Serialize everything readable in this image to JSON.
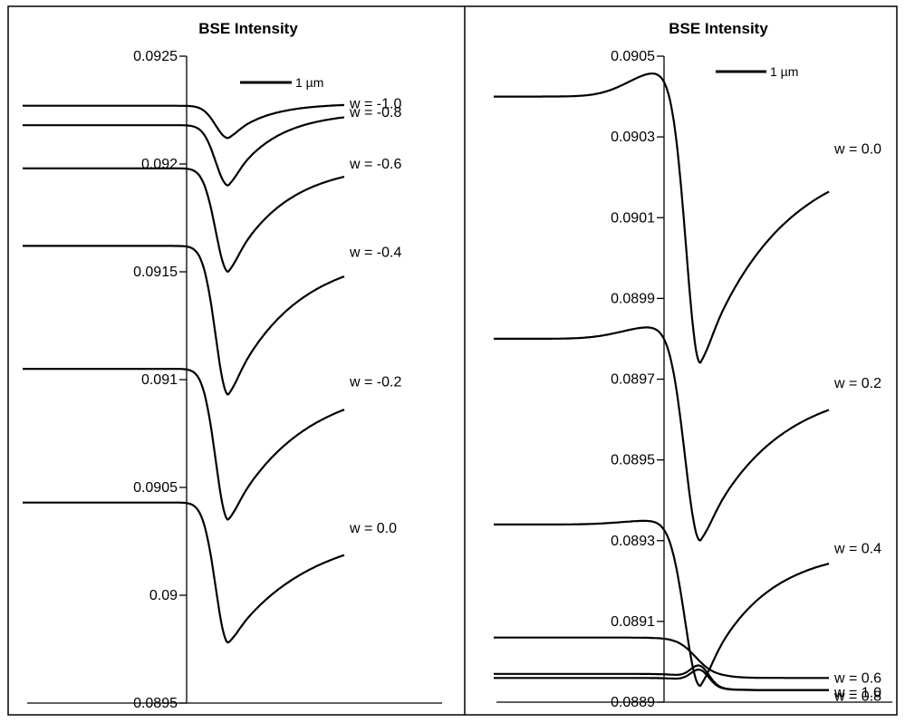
{
  "chart_data": [
    {
      "type": "line",
      "title": "BSE Intensity",
      "scale_bar": "1 µm",
      "y_tick_labels": [
        "0.0925",
        "0.092",
        "0.0915",
        "0.091",
        "0.0905",
        "0.09",
        "0.0895"
      ],
      "ylim": [
        0.0895,
        0.0925
      ],
      "series": [
        {
          "name": "w = -1.0",
          "left": 0.09227,
          "dip": 0.09212,
          "right": 0.09228,
          "dip_width": 1.0,
          "rec_scale": 1.0
        },
        {
          "name": "w = -0.8",
          "left": 0.09218,
          "dip": 0.0919,
          "right": 0.09224,
          "dip_width": 1.0,
          "rec_scale": 1.2
        },
        {
          "name": "w = -0.6",
          "left": 0.09198,
          "dip": 0.0915,
          "right": 0.092,
          "dip_width": 1.0,
          "rec_scale": 1.5
        },
        {
          "name": "w = -0.4",
          "left": 0.09162,
          "dip": 0.09093,
          "right": 0.09159,
          "dip_width": 1.0,
          "rec_scale": 1.8
        },
        {
          "name": "w = -0.2",
          "left": 0.09105,
          "dip": 0.09035,
          "right": 0.09099,
          "dip_width": 1.0,
          "rec_scale": 2.0
        },
        {
          "name": "w = 0.0",
          "left": 0.09043,
          "dip": 0.08978,
          "right": 0.09031,
          "dip_width": 1.0,
          "rec_scale": 2.2
        }
      ]
    },
    {
      "type": "line",
      "title": "BSE Intensity",
      "scale_bar": "1 µm",
      "y_tick_labels": [
        "0.0905",
        "0.0903",
        "0.0901",
        "0.0899",
        "0.0897",
        "0.0895",
        "0.0893",
        "0.0891",
        "0.0889"
      ],
      "ylim": [
        0.0889,
        0.0905
      ],
      "series": [
        {
          "name": "w = 0.0",
          "left": 0.0904,
          "peak": 0.09046,
          "dip": 0.08974,
          "right": 0.09027,
          "dip_width": 1.1,
          "rec_scale": 2.2
        },
        {
          "name": "w = 0.2",
          "left": 0.0898,
          "peak": 0.08983,
          "dip": 0.0893,
          "right": 0.08969,
          "dip_width": 1.2,
          "rec_scale": 2.0
        },
        {
          "name": "w = 0.4",
          "left": 0.08934,
          "peak": 0.08935,
          "dip": 0.08894,
          "right": 0.08928,
          "dip_width": 1.2,
          "rec_scale": 1.6
        },
        {
          "name": "w = 0.6",
          "left": 0.08906,
          "bump": 0.089,
          "right": 0.08896,
          "bump_width": 0.7
        },
        {
          "name": "w = 1.0",
          "left": 0.08897,
          "bump": 0.08899,
          "right": 0.08893,
          "bump_width": 0.5
        },
        {
          "name": "w = 0.8",
          "left": 0.08896,
          "bump": 0.08898,
          "right": 0.08893,
          "bump_width": 0.5
        }
      ]
    }
  ]
}
